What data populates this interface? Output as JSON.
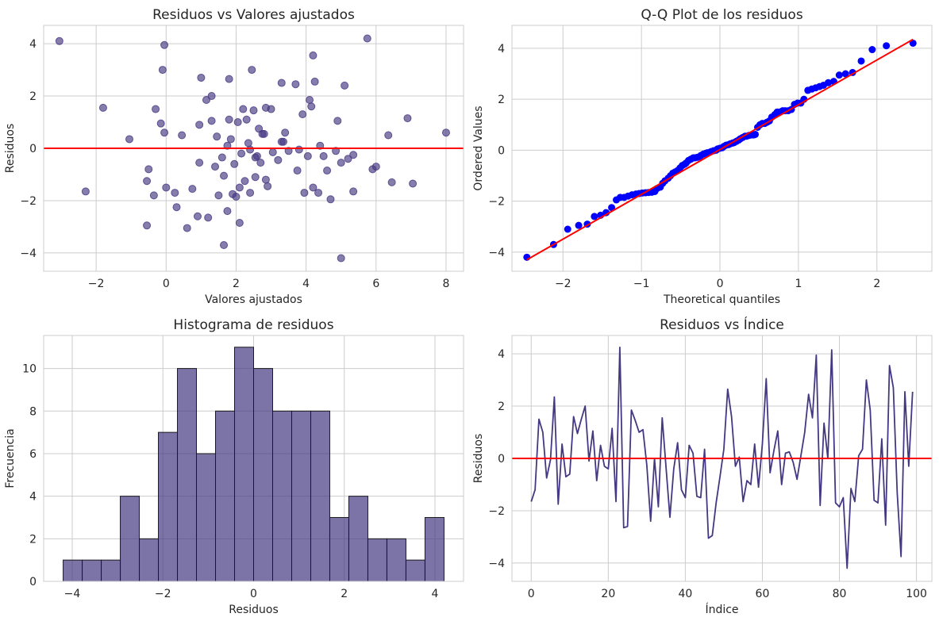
{
  "colors": {
    "accent": "#453781",
    "reference_line": "#ff0000",
    "qq_points": "#0000ff",
    "grid": "#cccccc",
    "text": "#262626"
  },
  "chart_data": [
    {
      "type": "scatter",
      "title": "Residuos vs Valores ajustados",
      "xlabel": "Valores ajustados",
      "ylabel": "Residuos",
      "xlim": [
        -3.5,
        8.5
      ],
      "ylim": [
        -4.7,
        4.7
      ],
      "xticks": [
        -2,
        0,
        2,
        4,
        6,
        8
      ],
      "yticks": [
        -4,
        -2,
        0,
        2,
        4
      ],
      "grid": true,
      "reference_line": {
        "y": 0
      },
      "points": [
        [
          -3.05,
          4.1
        ],
        [
          -2.3,
          -1.65
        ],
        [
          -1.8,
          1.55
        ],
        [
          -1.05,
          0.35
        ],
        [
          -0.55,
          -1.25
        ],
        [
          -0.55,
          -2.95
        ],
        [
          -0.5,
          -0.8
        ],
        [
          -0.35,
          -1.8
        ],
        [
          -0.3,
          1.5
        ],
        [
          -0.15,
          0.95
        ],
        [
          -0.1,
          3.0
        ],
        [
          -0.05,
          0.6
        ],
        [
          -0.05,
          3.95
        ],
        [
          0.0,
          -1.5
        ],
        [
          0.25,
          -1.7
        ],
        [
          0.3,
          -2.25
        ],
        [
          0.45,
          0.5
        ],
        [
          0.6,
          -3.05
        ],
        [
          0.75,
          -1.55
        ],
        [
          0.9,
          -2.6
        ],
        [
          0.95,
          0.9
        ],
        [
          0.95,
          -0.55
        ],
        [
          1.0,
          2.7
        ],
        [
          1.15,
          1.85
        ],
        [
          1.2,
          -2.65
        ],
        [
          1.3,
          2.0
        ],
        [
          1.3,
          1.05
        ],
        [
          1.4,
          -0.7
        ],
        [
          1.45,
          0.45
        ],
        [
          1.5,
          -1.8
        ],
        [
          1.6,
          -0.35
        ],
        [
          1.65,
          -3.7
        ],
        [
          1.65,
          -1.05
        ],
        [
          1.75,
          -2.4
        ],
        [
          1.75,
          0.1
        ],
        [
          1.8,
          1.1
        ],
        [
          1.8,
          2.65
        ],
        [
          1.85,
          0.35
        ],
        [
          1.9,
          -1.75
        ],
        [
          1.95,
          -0.6
        ],
        [
          2.0,
          -1.85
        ],
        [
          2.05,
          1.0
        ],
        [
          2.1,
          -1.5
        ],
        [
          2.1,
          -2.85
        ],
        [
          2.15,
          -0.2
        ],
        [
          2.2,
          1.5
        ],
        [
          2.25,
          -1.25
        ],
        [
          2.3,
          1.1
        ],
        [
          2.35,
          0.2
        ],
        [
          2.4,
          -0.05
        ],
        [
          2.4,
          -1.7
        ],
        [
          2.45,
          3.0
        ],
        [
          2.5,
          1.45
        ],
        [
          2.55,
          -0.35
        ],
        [
          2.55,
          -1.1
        ],
        [
          2.6,
          -0.3
        ],
        [
          2.65,
          0.75
        ],
        [
          2.7,
          -0.55
        ],
        [
          2.75,
          0.55
        ],
        [
          2.8,
          0.55
        ],
        [
          2.85,
          1.55
        ],
        [
          2.85,
          -1.2
        ],
        [
          2.9,
          -1.45
        ],
        [
          3.0,
          1.5
        ],
        [
          3.05,
          -0.15
        ],
        [
          3.2,
          -0.45
        ],
        [
          3.3,
          0.25
        ],
        [
          3.3,
          2.5
        ],
        [
          3.35,
          0.25
        ],
        [
          3.4,
          0.6
        ],
        [
          3.5,
          -0.1
        ],
        [
          3.7,
          2.45
        ],
        [
          3.75,
          -0.85
        ],
        [
          3.8,
          -0.05
        ],
        [
          3.9,
          1.3
        ],
        [
          3.95,
          -1.7
        ],
        [
          4.05,
          -0.3
        ],
        [
          4.1,
          1.85
        ],
        [
          4.15,
          1.6
        ],
        [
          4.2,
          -1.5
        ],
        [
          4.2,
          3.55
        ],
        [
          4.25,
          2.55
        ],
        [
          4.35,
          -1.7
        ],
        [
          4.4,
          0.1
        ],
        [
          4.5,
          -0.3
        ],
        [
          4.6,
          -0.85
        ],
        [
          4.7,
          -1.95
        ],
        [
          4.85,
          -0.1
        ],
        [
          4.9,
          1.05
        ],
        [
          5.0,
          -4.2
        ],
        [
          5.0,
          -0.55
        ],
        [
          5.1,
          2.4
        ],
        [
          5.2,
          -0.4
        ],
        [
          5.35,
          -0.25
        ],
        [
          5.35,
          -1.65
        ],
        [
          5.75,
          4.2
        ],
        [
          5.9,
          -0.8
        ],
        [
          6.0,
          -0.7
        ],
        [
          6.35,
          0.5
        ],
        [
          6.45,
          -1.3
        ],
        [
          6.9,
          1.15
        ],
        [
          7.05,
          -1.35
        ],
        [
          8.0,
          0.6
        ]
      ]
    },
    {
      "type": "scatter",
      "title": "Q-Q Plot de los residuos",
      "xlabel": "Theoretical quantiles",
      "ylabel": "Ordered Values",
      "xlim": [
        -2.65,
        2.7
      ],
      "ylim": [
        -4.75,
        4.9
      ],
      "xticks": [
        -2,
        -1,
        0,
        1,
        2
      ],
      "yticks": [
        -4,
        -2,
        0,
        2,
        4
      ],
      "grid": true,
      "fit_line": {
        "x": [
          -2.46,
          2.46
        ],
        "y": [
          -4.3,
          4.35
        ]
      },
      "points": [
        [
          -2.46,
          -4.2
        ],
        [
          -2.12,
          -3.7
        ],
        [
          -1.94,
          -3.1
        ],
        [
          -1.8,
          -2.95
        ],
        [
          -1.69,
          -2.9
        ],
        [
          -1.6,
          -2.6
        ],
        [
          -1.52,
          -2.55
        ],
        [
          -1.45,
          -2.45
        ],
        [
          -1.38,
          -2.25
        ],
        [
          -1.32,
          -1.95
        ],
        [
          -1.27,
          -1.85
        ],
        [
          -1.22,
          -1.85
        ],
        [
          -1.17,
          -1.8
        ],
        [
          -1.12,
          -1.75
        ],
        [
          -1.07,
          -1.72
        ],
        [
          -1.03,
          -1.7
        ],
        [
          -0.99,
          -1.68
        ],
        [
          -0.95,
          -1.67
        ],
        [
          -0.91,
          -1.66
        ],
        [
          -0.87,
          -1.65
        ],
        [
          -0.83,
          -1.62
        ],
        [
          -0.8,
          -1.5
        ],
        [
          -0.76,
          -1.45
        ],
        [
          -0.73,
          -1.3
        ],
        [
          -0.7,
          -1.2
        ],
        [
          -0.66,
          -1.1
        ],
        [
          -0.63,
          -1.0
        ],
        [
          -0.6,
          -0.9
        ],
        [
          -0.57,
          -0.85
        ],
        [
          -0.54,
          -0.8
        ],
        [
          -0.51,
          -0.7
        ],
        [
          -0.48,
          -0.6
        ],
        [
          -0.45,
          -0.55
        ],
        [
          -0.43,
          -0.5
        ],
        [
          -0.4,
          -0.4
        ],
        [
          -0.37,
          -0.35
        ],
        [
          -0.34,
          -0.3
        ],
        [
          -0.32,
          -0.3
        ],
        [
          -0.29,
          -0.28
        ],
        [
          -0.26,
          -0.25
        ],
        [
          -0.24,
          -0.2
        ],
        [
          -0.21,
          -0.15
        ],
        [
          -0.18,
          -0.12
        ],
        [
          -0.16,
          -0.1
        ],
        [
          -0.13,
          -0.08
        ],
        [
          -0.11,
          -0.05
        ],
        [
          -0.08,
          -0.02
        ],
        [
          -0.05,
          0.0
        ],
        [
          -0.03,
          0.05
        ],
        [
          0.0,
          0.08
        ],
        [
          0.03,
          0.1
        ],
        [
          0.05,
          0.15
        ],
        [
          0.08,
          0.2
        ],
        [
          0.11,
          0.22
        ],
        [
          0.13,
          0.25
        ],
        [
          0.16,
          0.28
        ],
        [
          0.18,
          0.3
        ],
        [
          0.21,
          0.35
        ],
        [
          0.24,
          0.4
        ],
        [
          0.26,
          0.45
        ],
        [
          0.29,
          0.5
        ],
        [
          0.32,
          0.55
        ],
        [
          0.34,
          0.55
        ],
        [
          0.37,
          0.58
        ],
        [
          0.4,
          0.6
        ],
        [
          0.43,
          0.6
        ],
        [
          0.45,
          0.62
        ],
        [
          0.48,
          0.9
        ],
        [
          0.51,
          1.0
        ],
        [
          0.54,
          1.05
        ],
        [
          0.57,
          1.05
        ],
        [
          0.6,
          1.1
        ],
        [
          0.63,
          1.15
        ],
        [
          0.66,
          1.3
        ],
        [
          0.7,
          1.4
        ],
        [
          0.73,
          1.5
        ],
        [
          0.76,
          1.5
        ],
        [
          0.8,
          1.55
        ],
        [
          0.83,
          1.55
        ],
        [
          0.87,
          1.55
        ],
        [
          0.91,
          1.6
        ],
        [
          0.95,
          1.8
        ],
        [
          0.99,
          1.85
        ],
        [
          1.03,
          1.85
        ],
        [
          1.07,
          2.0
        ],
        [
          1.12,
          2.35
        ],
        [
          1.17,
          2.4
        ],
        [
          1.22,
          2.45
        ],
        [
          1.27,
          2.5
        ],
        [
          1.32,
          2.55
        ],
        [
          1.38,
          2.65
        ],
        [
          1.45,
          2.7
        ],
        [
          1.52,
          2.95
        ],
        [
          1.6,
          3.0
        ],
        [
          1.69,
          3.05
        ],
        [
          1.8,
          3.5
        ],
        [
          1.94,
          3.95
        ],
        [
          2.12,
          4.1
        ],
        [
          2.46,
          4.2
        ]
      ]
    },
    {
      "type": "bar",
      "title": "Histograma de residuos",
      "xlabel": "Residuos",
      "ylabel": "Frecuencia",
      "xlim": [
        -4.63,
        4.63
      ],
      "ylim": [
        0,
        11.55
      ],
      "xticks": [
        -4,
        -2,
        0,
        2,
        4
      ],
      "yticks": [
        0,
        2,
        4,
        6,
        8,
        10
      ],
      "grid": true,
      "bin_edges": [
        -4.2,
        -3.78,
        -3.36,
        -2.94,
        -2.52,
        -2.1,
        -1.68,
        -1.26,
        -0.84,
        -0.42,
        0.0,
        0.42,
        0.84,
        1.26,
        1.68,
        2.1,
        2.52,
        2.94,
        3.36,
        3.78,
        4.2
      ],
      "values": [
        1,
        1,
        1,
        4,
        2,
        7,
        10,
        6,
        8,
        11,
        10,
        8,
        8,
        8,
        3,
        4,
        2,
        2,
        1,
        3
      ]
    },
    {
      "type": "line",
      "title": "Residuos vs Índice",
      "xlabel": "Índice",
      "ylabel": "Residuos",
      "xlim": [
        -5,
        104
      ],
      "ylim": [
        -4.7,
        4.7
      ],
      "xticks": [
        0,
        20,
        40,
        60,
        80,
        100
      ],
      "yticks": [
        -4,
        -2,
        0,
        2,
        4
      ],
      "grid": true,
      "reference_line": {
        "y": 0
      },
      "x_start": 0,
      "values": [
        -1.65,
        -1.2,
        1.5,
        1.0,
        -0.75,
        -0.05,
        2.35,
        -1.75,
        0.55,
        -0.7,
        -0.6,
        1.6,
        0.95,
        1.5,
        2.0,
        -0.1,
        1.05,
        -0.85,
        0.5,
        -0.3,
        -0.4,
        1.15,
        -1.65,
        4.25,
        -2.65,
        -2.6,
        1.85,
        1.45,
        1.0,
        1.1,
        -0.25,
        -2.4,
        0.0,
        -1.85,
        1.55,
        -0.35,
        -2.25,
        -0.4,
        0.6,
        -1.2,
        -1.5,
        0.5,
        0.2,
        -1.45,
        -1.5,
        0.35,
        -3.05,
        -2.95,
        -1.7,
        -0.7,
        0.35,
        2.65,
        1.6,
        -0.3,
        0.05,
        -1.65,
        -0.85,
        -1.0,
        0.55,
        -1.1,
        0.55,
        3.05,
        -0.55,
        0.3,
        1.05,
        -1.0,
        0.2,
        0.25,
        -0.15,
        -0.8,
        0.1,
        1.0,
        2.45,
        1.55,
        3.95,
        -1.8,
        1.35,
        0.0,
        4.15,
        -1.7,
        -1.85,
        -1.5,
        -4.2,
        -1.15,
        -1.65,
        0.1,
        0.35,
        3.0,
        1.85,
        -1.6,
        -1.7,
        0.75,
        -2.55,
        3.55,
        2.7,
        -1.3,
        -3.75,
        2.55,
        -0.3,
        2.55
      ]
    }
  ]
}
